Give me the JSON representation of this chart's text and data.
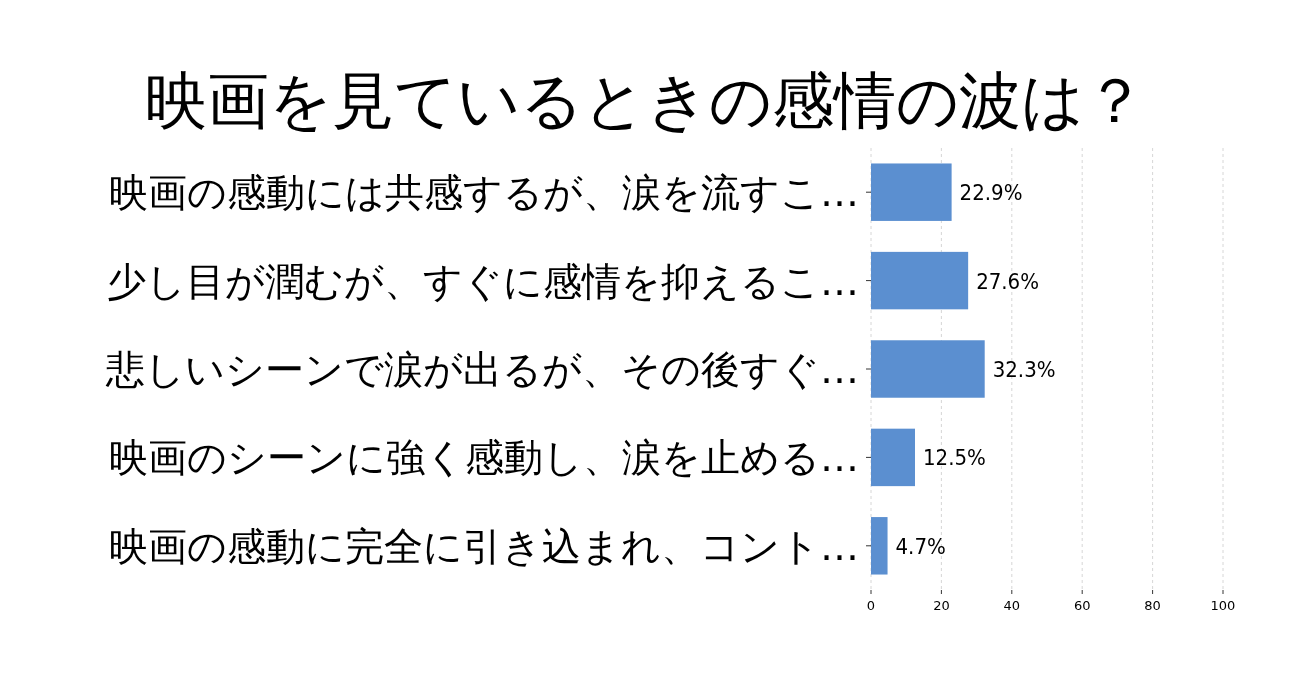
{
  "chart_data": {
    "type": "bar",
    "orientation": "horizontal",
    "title": "映画を見ているときの感情の波は？",
    "categories": [
      "映画の感動には共感するが、涙を流すこ…",
      "少し目が潤むが、すぐに感情を抑えるこ…",
      "悲しいシーンで涙が出るが、その後すぐ…",
      "映画のシーンに強く感動し、涙を止める…",
      "映画の感動に完全に引き込まれ、コント…"
    ],
    "values": [
      22.9,
      27.6,
      32.3,
      12.5,
      4.7
    ],
    "value_labels": [
      "22.9%",
      "27.6%",
      "32.3%",
      "12.5%",
      "4.7%"
    ],
    "color": "#5b8fd0",
    "xlim": [
      0,
      100
    ],
    "xticks": [
      0,
      20,
      40,
      60,
      80,
      100
    ],
    "grid": "x"
  }
}
